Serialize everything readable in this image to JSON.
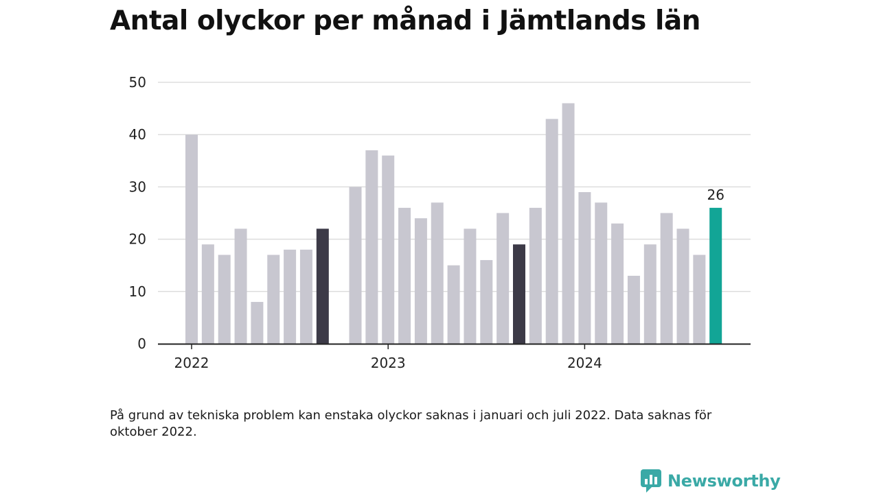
{
  "title": "Antal olyckor per månad i Jämtlands län",
  "note": "På grund av tekniska problem kan enstaka olyckor saknas i januari och juli 2022. Data saknas för oktober 2022.",
  "brand": {
    "name": "Newsworthy",
    "icon": "newsworthy-logo-icon"
  },
  "colors": {
    "default": "#c8c7d0",
    "october": "#3c3a47",
    "latest": "#12a596",
    "axis": "#222222",
    "grid": "#dddddd"
  },
  "chart_data": {
    "type": "bar",
    "title": "Antal olyckor per månad i Jämtlands län",
    "ylim": [
      0,
      50
    ],
    "yticks": [
      "0",
      "10",
      "20",
      "30",
      "40",
      "50"
    ],
    "xticks": [
      {
        "label": "2022",
        "month": "2022-01"
      },
      {
        "label": "2023",
        "month": "2023-01"
      },
      {
        "label": "2024",
        "month": "2024-01"
      }
    ],
    "grid": true,
    "highlight_label": "26",
    "months": [
      "2022-01",
      "2022-02",
      "2022-03",
      "2022-04",
      "2022-05",
      "2022-06",
      "2022-07",
      "2022-08",
      "2022-09",
      "2022-10",
      "2022-11",
      "2022-12",
      "2023-01",
      "2023-02",
      "2023-03",
      "2023-04",
      "2023-05",
      "2023-06",
      "2023-07",
      "2023-08",
      "2023-09",
      "2023-10",
      "2023-11",
      "2023-12",
      "2024-01",
      "2024-02",
      "2024-03",
      "2024-04",
      "2024-05",
      "2024-06",
      "2024-07",
      "2024-08",
      "2024-09",
      "2024-10"
    ],
    "values": [
      40,
      19,
      17,
      22,
      8,
      17,
      18,
      18,
      22,
      null,
      30,
      37,
      36,
      26,
      24,
      27,
      15,
      22,
      16,
      25,
      19,
      26,
      43,
      46,
      29,
      27,
      23,
      13,
      19,
      25,
      22,
      17,
      26,
      null
    ],
    "styles": [
      "default",
      "default",
      "default",
      "default",
      "default",
      "default",
      "default",
      "default",
      "october",
      "missing",
      "default",
      "default",
      "default",
      "default",
      "default",
      "default",
      "default",
      "default",
      "default",
      "default",
      "october",
      "default",
      "default",
      "default",
      "default",
      "default",
      "default",
      "default",
      "default",
      "default",
      "default",
      "default",
      "latest",
      "missing"
    ]
  }
}
